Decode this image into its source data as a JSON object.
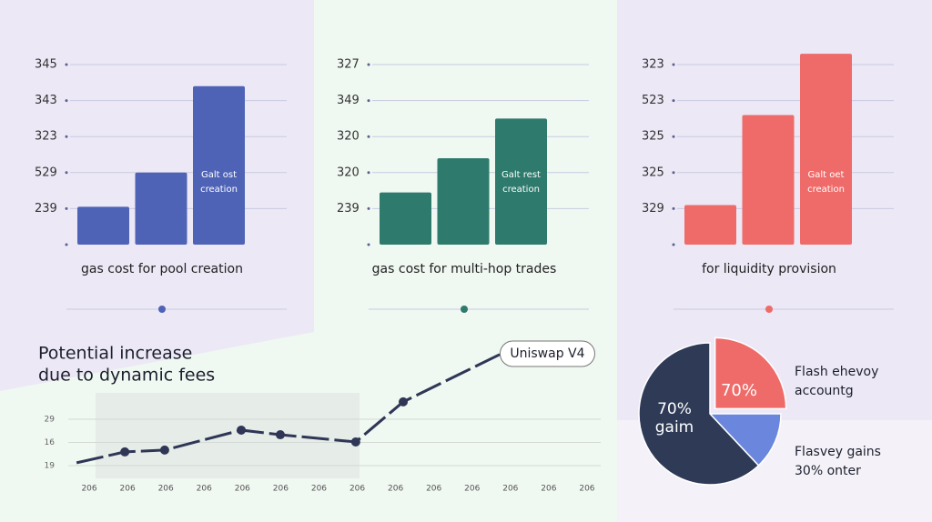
{
  "chart_data": [
    {
      "type": "bar",
      "title": "gas cost for pool creation",
      "annotation": [
        "Galt ost",
        "creation"
      ],
      "values": [
        1.05,
        2.0,
        4.4
      ],
      "color": "#4f63b6",
      "ylim": [
        0,
        5.5
      ],
      "yticks": [
        {
          "value": 1,
          "label": "239"
        },
        {
          "value": 2,
          "label": "529"
        },
        {
          "value": 3,
          "label": "323"
        },
        {
          "value": 4,
          "label": "343"
        },
        {
          "value": 5,
          "label": "345"
        }
      ],
      "grid": true
    },
    {
      "type": "bar",
      "title": "gas cost for multi-hop trades",
      "annotation": [
        "Galt rest",
        "creation"
      ],
      "values": [
        1.45,
        2.4,
        3.5
      ],
      "color": "#2e7a6c",
      "ylim": [
        0,
        5.5
      ],
      "yticks": [
        {
          "value": 1,
          "label": "239"
        },
        {
          "value": 2,
          "label": "320"
        },
        {
          "value": 3,
          "label": "320"
        },
        {
          "value": 4,
          "label": "349"
        },
        {
          "value": 5,
          "label": "327"
        }
      ],
      "grid": true
    },
    {
      "type": "bar",
      "title": "for liquidity provision",
      "annotation": [
        "Galt oet",
        "creation"
      ],
      "values": [
        1.1,
        3.6,
        5.3
      ],
      "color": "#ee6b69",
      "ylim": [
        0,
        5.5
      ],
      "yticks": [
        {
          "value": 1,
          "label": "329"
        },
        {
          "value": 2,
          "label": "325"
        },
        {
          "value": 3,
          "label": "325"
        },
        {
          "value": 4,
          "label": "523"
        },
        {
          "value": 5,
          "label": "323"
        }
      ],
      "grid": true
    },
    {
      "type": "line",
      "title": [
        "Potential increase",
        "due to dynamic fees"
      ],
      "annotation": "Uniswap V4",
      "color": "#2f3656",
      "x": [
        -0.33,
        0.93,
        1.97,
        3.97,
        4.99,
        6.96,
        8.2,
        10.73
      ],
      "values": [
        1.12,
        1.59,
        1.67,
        2.53,
        2.33,
        2.02,
        3.75,
        5.8
      ],
      "xlim": [
        -0.5,
        13.5
      ],
      "ylim": [
        0.5,
        6
      ],
      "xticks": [
        {
          "value": 0,
          "label": "206"
        },
        {
          "value": 1,
          "label": "206"
        },
        {
          "value": 2,
          "label": "206"
        },
        {
          "value": 3,
          "label": "206"
        },
        {
          "value": 4,
          "label": "206"
        },
        {
          "value": 5,
          "label": "206"
        },
        {
          "value": 6,
          "label": "206"
        },
        {
          "value": 7,
          "label": "206"
        },
        {
          "value": 8,
          "label": "206"
        },
        {
          "value": 9,
          "label": "206"
        },
        {
          "value": 10,
          "label": "206"
        },
        {
          "value": 11,
          "label": "206"
        },
        {
          "value": 12,
          "label": "206"
        },
        {
          "value": 13,
          "label": "206"
        }
      ],
      "yticks": [
        {
          "value": 1,
          "label": "19"
        },
        {
          "value": 2,
          "label": "16"
        },
        {
          "value": 3,
          "label": "29"
        }
      ],
      "grid": true
    },
    {
      "type": "pie",
      "values": [
        25,
        13,
        62
      ],
      "colors": [
        "#ee6b69",
        "#6a86dd",
        "#2e3a56"
      ],
      "annotations": [
        [
          "70%"
        ],
        [
          "70%",
          "gaim"
        ],
        [
          "Flash ehevoy",
          "accountg"
        ],
        [
          "Flasvey gains",
          "30% onter"
        ]
      ]
    }
  ]
}
